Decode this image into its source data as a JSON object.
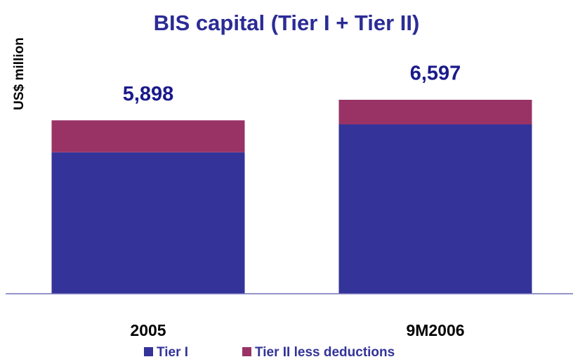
{
  "chart_data": {
    "type": "stacked_bar",
    "title": "BIS capital (Tier I + Tier II)",
    "y_label": "US$  million",
    "categories": [
      "2005",
      "9M2006"
    ],
    "series": [
      {
        "name": "Tier I",
        "color": "#333399",
        "values": [
          4810,
          5760
        ]
      },
      {
        "name": "Tier II less deductions",
        "color": "#993366",
        "values": [
          1088,
          837
        ]
      }
    ],
    "totals": [
      5898,
      6597
    ],
    "total_labels": [
      "5,898",
      "6,597"
    ],
    "legend": "bottom"
  }
}
